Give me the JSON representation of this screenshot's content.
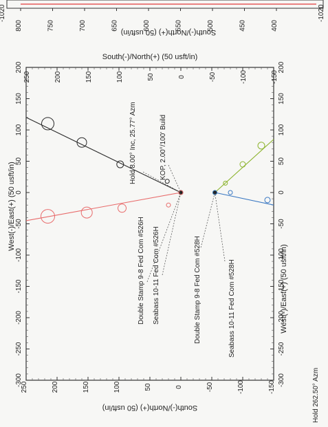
{
  "top_panel": {
    "left_label": "-1020",
    "right_label": "-1020",
    "axis_label": "South(-)/North(+) (50 usft/in)",
    "ticks": [
      "800",
      "750",
      "700",
      "650",
      "600",
      "550",
      "500",
      "450",
      "400"
    ],
    "line_color": "#e23b3b"
  },
  "bottom_annotation": "Hold 262.50° Azm",
  "chart_data": {
    "type": "scatter",
    "title": "",
    "xlabel": "West(-)/East(+) (50 usft/in)",
    "ylabel": "South(-)/North(+) (50 usft/in)",
    "xlim": [
      -300,
      200
    ],
    "ylim": [
      -150,
      250
    ],
    "x_ticks": [
      -300,
      -250,
      -200,
      -150,
      -100,
      -50,
      0,
      50,
      100,
      150,
      200
    ],
    "y_ticks": [
      250,
      200,
      150,
      100,
      50,
      0,
      -50,
      -100,
      -150
    ],
    "grid": false,
    "series": [
      {
        "name": "Double Stamp 9-8 Fed Com #526H",
        "color": "#2b2b2b",
        "line": [
          [
            0,
            0
          ],
          [
            120,
            250
          ]
        ],
        "points": [
          [
            0,
            0
          ],
          [
            18,
            22
          ],
          [
            45,
            98
          ],
          [
            80,
            160
          ],
          [
            110,
            215
          ]
        ],
        "circle_sizes": [
          3,
          3,
          5,
          7,
          9
        ]
      },
      {
        "name": "Seabass 10-11 Fed Com #526H",
        "color": "#e86b6b",
        "line": [
          [
            0,
            0
          ],
          [
            -45,
            250
          ]
        ],
        "points": [
          [
            0,
            0
          ],
          [
            -20,
            20
          ],
          [
            -25,
            95
          ],
          [
            -32,
            152
          ],
          [
            -38,
            215
          ]
        ],
        "circle_sizes": [
          3,
          3,
          6,
          8,
          10
        ]
      },
      {
        "name": "Double Stamp 9-8 Fed Com #528H",
        "color": "#8db42f",
        "line": [
          [
            0,
            -55
          ],
          [
            85,
            -150
          ]
        ],
        "points": [
          [
            0,
            -55
          ],
          [
            15,
            -72
          ],
          [
            45,
            -100
          ],
          [
            75,
            -130
          ]
        ],
        "circle_sizes": [
          3,
          3,
          4,
          5
        ]
      },
      {
        "name": "Seabass 10-11 Fed Com #528H",
        "color": "#3a78c2",
        "line": [
          [
            0,
            -55
          ],
          [
            -20,
            -150
          ]
        ],
        "points": [
          [
            0,
            -55
          ],
          [
            0,
            -80
          ],
          [
            -12,
            -140
          ]
        ],
        "circle_sizes": [
          3,
          3,
          4
        ]
      }
    ],
    "annotations": [
      {
        "text": "Hold 8.00° Inc, 25.77° Azm",
        "at": [
          0,
          0
        ]
      },
      {
        "text": "KOP, 2.00°/100' Build",
        "at": [
          0,
          0
        ]
      },
      {
        "text": "Double Stamp 9-8 Fed Com #526H",
        "at": [
          0,
          0
        ]
      },
      {
        "text": "Seabass 10-11 Fed Com #526H",
        "at": [
          0,
          0
        ]
      },
      {
        "text": "Double Stamp 9-8 Fed Com #528H",
        "at": [
          0,
          -55
        ]
      },
      {
        "text": "Seabass 10-11 Fed Com #528H",
        "at": [
          0,
          -55
        ]
      }
    ]
  }
}
